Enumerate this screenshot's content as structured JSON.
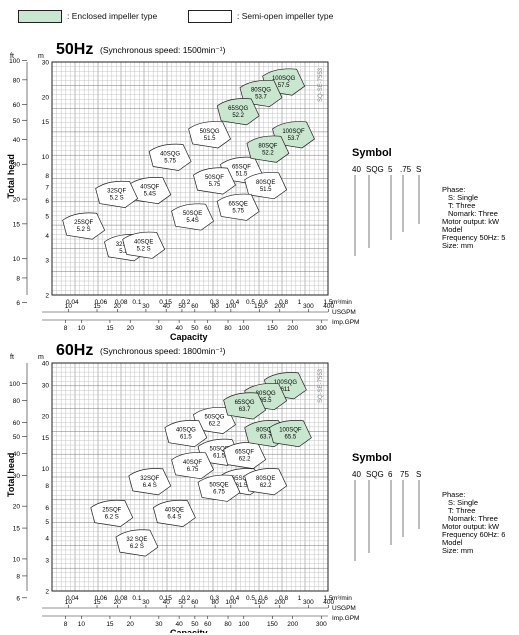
{
  "legend": {
    "enclosed_label": ": Enclosed impeller type",
    "semiopen_label": ": Semi-open impeller type",
    "enclosed_color": "#c9e6cf",
    "semiopen_color": "#ffffff"
  },
  "chart_data": [
    {
      "type": "area",
      "title": "50Hz",
      "subtitle": "(Synchronous speed: 1500min⁻¹)",
      "xlabel": "Capacity",
      "ylabel": "Total head",
      "unit_m": "m",
      "unit_ft": "ft",
      "x_unit_m3": "m³/min",
      "x_unit_usgpm": "USGPM",
      "x_unit_impgpm": "Imp.GPM",
      "x_scale": "log",
      "y_scale": "log",
      "xlim": [
        0.03,
        1.5
      ],
      "ylim": [
        2,
        30
      ],
      "x_ticks": [
        "0.04",
        "0.06",
        "0.08",
        "0.1",
        "0.15",
        "0.2",
        "0.3",
        "0.4",
        "0.5",
        "0.6",
        "0.8",
        "1",
        "1.5"
      ],
      "y_ticks_m": [
        "30",
        "20",
        "15",
        "10",
        "8",
        "7",
        "6",
        "5",
        "4",
        "3",
        "2"
      ],
      "y_ticks_ft": [
        "100",
        "80",
        "60",
        "50",
        "40",
        "30",
        "20",
        "15",
        "10",
        "8",
        "6"
      ],
      "usgpm_ticks": [
        "10",
        "15",
        "20",
        "30",
        "40",
        "50",
        "60",
        "80",
        "100",
        "150",
        "200",
        "300",
        "400"
      ],
      "impgpm_ticks": [
        "8",
        "10",
        "15",
        "20",
        "30",
        "40",
        "50",
        "60",
        "80",
        "100",
        "150",
        "200",
        "300"
      ],
      "stamp": "SQ-SE-7553",
      "regions": [
        {
          "label": "100SQG",
          "power": "57.5",
          "kind": "enclosed"
        },
        {
          "label": "80SQG",
          "power": "53.7",
          "kind": "enclosed"
        },
        {
          "label": "65SQG",
          "power": "52.2",
          "kind": "enclosed"
        },
        {
          "label": "100SQF",
          "power": "53.7",
          "kind": "enclosed"
        },
        {
          "label": "80SQF",
          "power": "52.2",
          "kind": "enclosed"
        },
        {
          "label": "50SQG",
          "power": "51.5",
          "kind": "semiopen"
        },
        {
          "label": "65SQF",
          "power": "51.5",
          "kind": "semiopen"
        },
        {
          "label": "80SQE",
          "power": "51.5",
          "kind": "semiopen"
        },
        {
          "label": "40SQG",
          "power": "5.75",
          "kind": "semiopen"
        },
        {
          "label": "50SQF",
          "power": "5.75",
          "kind": "semiopen"
        },
        {
          "label": "65SQE",
          "power": "5.75",
          "kind": "semiopen"
        },
        {
          "label": "40SQF",
          "power": "5.4S",
          "kind": "semiopen"
        },
        {
          "label": "50SQE",
          "power": "5.4S",
          "kind": "semiopen"
        },
        {
          "label": "32SQF",
          "power": "5.2 S",
          "kind": "semiopen"
        },
        {
          "label": "25SQF",
          "power": "5.2 S",
          "kind": "semiopen"
        },
        {
          "label": "32SQE",
          "power": "5.2S",
          "kind": "semiopen"
        },
        {
          "label": "40SQE",
          "power": "5.2 S",
          "kind": "semiopen"
        }
      ]
    },
    {
      "type": "area",
      "title": "60Hz",
      "subtitle": "(Synchronous speed: 1800min⁻¹)",
      "xlabel": "Capacity",
      "ylabel": "Total head",
      "unit_m": "m",
      "unit_ft": "ft",
      "x_unit_m3": "m³/min",
      "x_unit_usgpm": "USGPM",
      "x_unit_impgpm": "Imp.GPM",
      "x_scale": "log",
      "y_scale": "log",
      "xlim": [
        0.03,
        1.5
      ],
      "ylim": [
        2,
        40
      ],
      "x_ticks": [
        "0.04",
        "0.06",
        "0.08",
        "0.1",
        "0.15",
        "0.2",
        "0.3",
        "0.4",
        "0.5",
        "0.6",
        "0.8",
        "1",
        "1.5"
      ],
      "y_ticks_m": [
        "40",
        "30",
        "20",
        "15",
        "10",
        "8",
        "6",
        "5",
        "4",
        "3",
        "2"
      ],
      "y_ticks_ft": [
        "100",
        "80",
        "60",
        "50",
        "40",
        "30",
        "20",
        "15",
        "10",
        "8",
        "6"
      ],
      "usgpm_ticks": [
        "10",
        "15",
        "20",
        "30",
        "40",
        "50",
        "60",
        "80",
        "100",
        "150",
        "200",
        "300",
        "400"
      ],
      "impgpm_ticks": [
        "8",
        "10",
        "15",
        "20",
        "30",
        "40",
        "50",
        "60",
        "80",
        "100",
        "150",
        "200",
        "300"
      ],
      "stamp": "SQ-SE-7553",
      "regions": [
        {
          "label": "100SQG",
          "power": "611",
          "kind": "enclosed"
        },
        {
          "label": "80SQG",
          "power": "65.5",
          "kind": "enclosed"
        },
        {
          "label": "65SQG",
          "power": "63.7",
          "kind": "enclosed"
        },
        {
          "label": "80SQF",
          "power": "63.7",
          "kind": "enclosed"
        },
        {
          "label": "100SQF",
          "power": "65.5",
          "kind": "enclosed"
        },
        {
          "label": "50SQG",
          "power": "62.2",
          "kind": "semiopen"
        },
        {
          "label": "40SQG",
          "power": "61.5",
          "kind": "semiopen"
        },
        {
          "label": "50SQF",
          "power": "61.5",
          "kind": "semiopen"
        },
        {
          "label": "65SQF",
          "power": "62.2",
          "kind": "semiopen"
        },
        {
          "label": "65SQE",
          "power": "61.5",
          "kind": "semiopen"
        },
        {
          "label": "80SQE",
          "power": "62.2",
          "kind": "semiopen"
        },
        {
          "label": "40SQF",
          "power": "6.75",
          "kind": "semiopen"
        },
        {
          "label": "50SQE",
          "power": "6.75",
          "kind": "semiopen"
        },
        {
          "label": "32SQF",
          "power": "6.4 S",
          "kind": "semiopen"
        },
        {
          "label": "25SQF",
          "power": "6.2 S",
          "kind": "semiopen"
        },
        {
          "label": "40SQE",
          "power": "6.4 S",
          "kind": "semiopen"
        },
        {
          "label": "32 SQE",
          "power": "6.2 S",
          "kind": "semiopen"
        }
      ]
    }
  ],
  "symbols": [
    {
      "title": "Symbol",
      "code": [
        "40",
        "SQG",
        "5",
        ".75",
        "S"
      ],
      "lines": [
        "Phase:",
        "S: Single",
        "T: Three",
        "Nomark: Three",
        "Motor output: kW",
        "Model",
        "Frequency 50Hz: 5",
        "Size: mm"
      ]
    },
    {
      "title": "Symbol",
      "code": [
        "40",
        "SQG",
        "6",
        "75",
        "S"
      ],
      "lines": [
        "Phase:",
        "S: Single",
        "T: Three",
        "Nomark: Three",
        "Motor output: kW",
        "Frequency 60Hz: 6",
        "Model",
        "Size: mm"
      ]
    }
  ]
}
